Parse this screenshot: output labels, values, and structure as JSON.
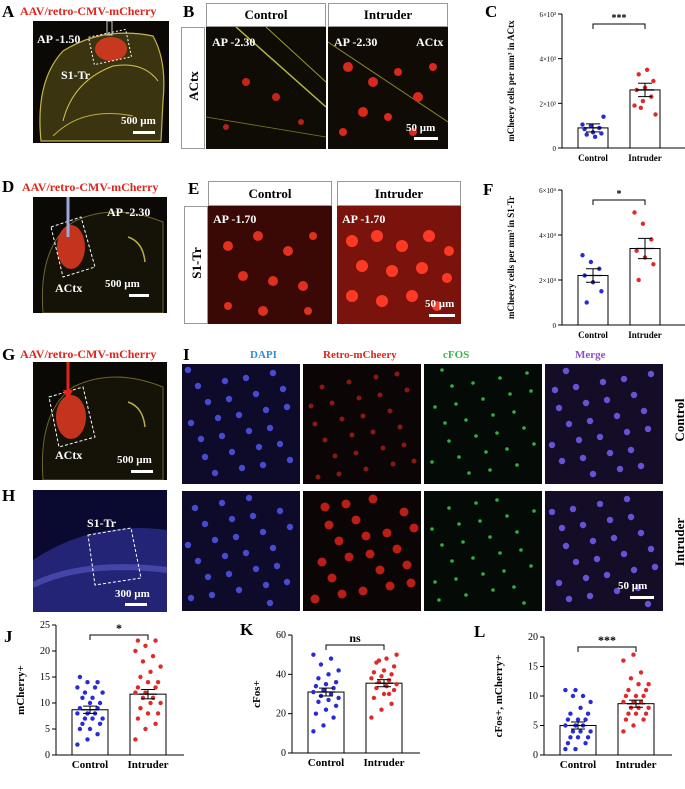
{
  "labels": {
    "A": "A",
    "B": "B",
    "C": "C",
    "D": "D",
    "E": "E",
    "F": "F",
    "G": "G",
    "H": "H",
    "I": "I",
    "J": "J",
    "K": "K",
    "L": "L"
  },
  "virus": "AAV/retro-CMV-mCherry",
  "panelA": {
    "ap": "AP -1.50",
    "region": "S1-Tr",
    "scale": "500 µm"
  },
  "panelB": {
    "ctrl_hdr": "Control",
    "intr_hdr": "Intruder",
    "row": "ACtx",
    "ap1": "AP -2.30",
    "ap2": "AP -2.30",
    "region2": "ACtx",
    "scale": "50 µm"
  },
  "panelD": {
    "ap": "AP -2.30",
    "region": "ACtx",
    "scale": "500 µm"
  },
  "panelE": {
    "ctrl_hdr": "Control",
    "intr_hdr": "Intruder",
    "row": "S1-Tr",
    "ap1": "AP -1.70",
    "ap2": "AP -1.70",
    "scale": "50 µm"
  },
  "panelG": {
    "region": "ACtx",
    "scale": "500 µm"
  },
  "panelH": {
    "region": "S1-Tr",
    "scale": "300 µm"
  },
  "panelI": {
    "dapi": "DAPI",
    "retro": "Retro-mCheery",
    "cfos": "cFOS",
    "merge": "Merge",
    "row1": "Control",
    "row2": "Intruder",
    "scale": "50 µm"
  },
  "colors": {
    "control": "#2b2bd6",
    "intruder": "#e02a2a",
    "virus_text": "#e0251b",
    "dapi": "#2f8fd8",
    "retro": "#e0251b",
    "cfos": "#3cb54a",
    "merge": "#8e4fc9"
  },
  "chart_data": [
    {
      "id": "C",
      "type": "bar",
      "categories": [
        "Control",
        "Intruder"
      ],
      "values": [
        900,
        2600
      ],
      "errors": [
        180,
        300
      ],
      "ylabel": "mCheery cells per mm³ in ACtx",
      "ylim": [
        0,
        6000
      ],
      "ticks": [
        0,
        2000,
        4000,
        6000
      ],
      "tick_labels": [
        "0",
        "2×10³",
        "4×10³",
        "6×10³"
      ],
      "significance": "***",
      "points": {
        "Control": [
          1050,
          1000,
          900,
          850,
          700,
          650,
          600,
          500,
          1400
        ],
        "Intruder": [
          1900,
          2100,
          2300,
          2600,
          2700,
          3000,
          3300,
          3500,
          1500,
          1800
        ]
      }
    },
    {
      "id": "F",
      "type": "bar",
      "categories": [
        "Control",
        "Intruder"
      ],
      "values": [
        22000,
        34000
      ],
      "errors": [
        3000,
        4500
      ],
      "ylabel": "mCheery cells per mm³ in S1-Tr",
      "ylim": [
        0,
        60000
      ],
      "ticks": [
        0,
        20000,
        40000,
        60000
      ],
      "tick_labels": [
        "0",
        "2×10⁴",
        "4×10⁴",
        "6×10⁴"
      ],
      "significance": "*",
      "points": {
        "Control": [
          31000,
          28000,
          25000,
          22000,
          19000,
          15000,
          10000
        ],
        "Intruder": [
          50000,
          45000,
          38000,
          33000,
          30000,
          27000,
          20000
        ]
      }
    },
    {
      "id": "J",
      "type": "bar",
      "categories": [
        "Control",
        "Intruder"
      ],
      "values": [
        8.7,
        11.7
      ],
      "errors": [
        0.7,
        0.9
      ],
      "ylabel": "mCherry+",
      "ylim": [
        0,
        25
      ],
      "ticks": [
        0,
        5,
        10,
        15,
        20,
        25
      ],
      "tick_labels": [
        "0",
        "5",
        "10",
        "15",
        "20",
        "25"
      ],
      "significance": "*",
      "points": {
        "Control": [
          2,
          3,
          4,
          5,
          5,
          6,
          6,
          7,
          7,
          7,
          8,
          8,
          8,
          9,
          9,
          10,
          10,
          11,
          11,
          12,
          12,
          13,
          13,
          14,
          14,
          15
        ],
        "Intruder": [
          3,
          5,
          6,
          7,
          8,
          8,
          9,
          10,
          10,
          11,
          11,
          12,
          12,
          13,
          13,
          14,
          14,
          15,
          16,
          17,
          18,
          19,
          20,
          21,
          22,
          22
        ]
      }
    },
    {
      "id": "K",
      "type": "bar",
      "categories": [
        "Control",
        "Intruder"
      ],
      "values": [
        31,
        35.5
      ],
      "errors": [
        2,
        1.8
      ],
      "ylabel": "cFos+",
      "ylim": [
        0,
        60
      ],
      "ticks": [
        0,
        20,
        40,
        60
      ],
      "tick_labels": [
        "0",
        "20",
        "40",
        "60"
      ],
      "significance": "ns",
      "points": {
        "Control": [
          11,
          14,
          18,
          20,
          22,
          24,
          26,
          27,
          28,
          29,
          30,
          31,
          32,
          33,
          34,
          35,
          36,
          38,
          40,
          42,
          45,
          48,
          50
        ],
        "Intruder": [
          18,
          22,
          25,
          28,
          30,
          32,
          33,
          34,
          35,
          36,
          37,
          38,
          39,
          40,
          41,
          42,
          44,
          46,
          48,
          50,
          47,
          30
        ]
      }
    },
    {
      "id": "L",
      "type": "bar",
      "categories": [
        "Control",
        "Intruder"
      ],
      "values": [
        5,
        8.7
      ],
      "errors": [
        0.6,
        0.6
      ],
      "ylabel": "cFos+, mCherry+",
      "ylim": [
        0,
        20
      ],
      "ticks": [
        0,
        5,
        10,
        15,
        20
      ],
      "tick_labels": [
        "0",
        "5",
        "10",
        "15",
        "20"
      ],
      "significance": "***",
      "points": {
        "Control": [
          1,
          1,
          2,
          2,
          3,
          3,
          3,
          4,
          4,
          4,
          5,
          5,
          5,
          6,
          6,
          6,
          7,
          7,
          8,
          9,
          10,
          10,
          11,
          11
        ],
        "Intruder": [
          4,
          5,
          6,
          6,
          7,
          7,
          7,
          8,
          8,
          8,
          9,
          9,
          9,
          10,
          10,
          10,
          11,
          11,
          12,
          12,
          13,
          14,
          16,
          17
        ]
      }
    }
  ]
}
